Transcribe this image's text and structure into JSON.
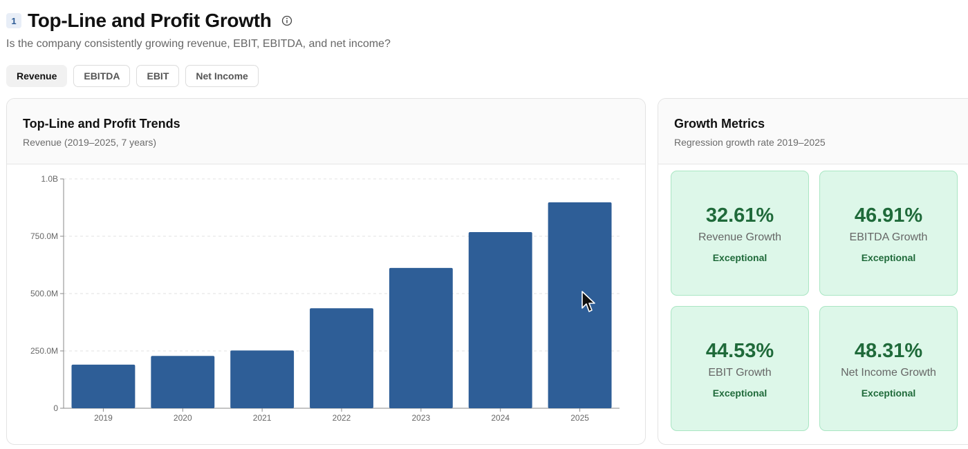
{
  "header": {
    "section_number": "1",
    "title": "Top-Line and Profit Growth",
    "subtitle": "Is the company consistently growing revenue, EBIT, EBITDA, and net income?",
    "info_icon": "info-icon"
  },
  "tabs": [
    {
      "label": "Revenue",
      "active": true
    },
    {
      "label": "EBITDA",
      "active": false
    },
    {
      "label": "EBIT",
      "active": false
    },
    {
      "label": "Net Income",
      "active": false
    }
  ],
  "trends_card": {
    "title": "Top-Line and Profit Trends",
    "subtitle": "Revenue (2019–2025, 7 years)"
  },
  "chart_data": {
    "type": "bar",
    "categories": [
      "2019",
      "2020",
      "2021",
      "2022",
      "2023",
      "2024",
      "2025"
    ],
    "values": [
      190000000,
      228000000,
      252000000,
      436000000,
      612000000,
      768000000,
      898000000
    ],
    "ylim": [
      0,
      1000000000
    ],
    "yticks": [
      0,
      250000000,
      500000000,
      750000000,
      1000000000
    ],
    "ytick_labels": [
      "0",
      "250.0M",
      "500.0M",
      "750.0M",
      "1.0B"
    ],
    "bar_color": "#2e5e97",
    "grid": true,
    "legend": "none"
  },
  "metrics_card": {
    "title": "Growth Metrics",
    "subtitle": "Regression growth rate 2019–2025",
    "tile_color": "#ddf7e9",
    "accent_color": "#1f6a3a",
    "tiles": [
      {
        "value": "32.61%",
        "label": "Revenue Growth",
        "rating": "Exceptional"
      },
      {
        "value": "46.91%",
        "label": "EBITDA Growth",
        "rating": "Exceptional"
      },
      {
        "value": "44.53%",
        "label": "EBIT Growth",
        "rating": "Exceptional"
      },
      {
        "value": "48.31%",
        "label": "Net Income Growth",
        "rating": "Exceptional"
      }
    ]
  }
}
